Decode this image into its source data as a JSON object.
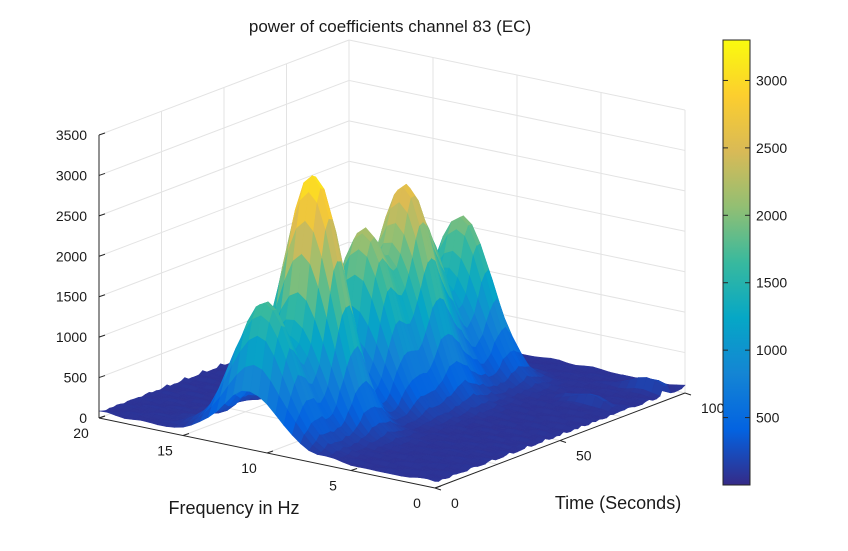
{
  "chart_data": {
    "type": "surface",
    "title": "power of coefficients channel 83 (EC)",
    "xlabel": "Frequency in Hz",
    "ylabel": "Time (Seconds)",
    "zlabel": "",
    "xlim": [
      0,
      20
    ],
    "ylim": [
      0,
      100
    ],
    "zlim": [
      0,
      3500
    ],
    "x_ticks": [
      "0",
      "5",
      "10",
      "15",
      "20"
    ],
    "y_ticks": [
      "0",
      "50",
      "100"
    ],
    "z_ticks": [
      "0",
      "500",
      "1000",
      "1500",
      "2000",
      "2500",
      "3000",
      "3500"
    ],
    "colormap": "parula",
    "colorbar": {
      "ticks": [
        "500",
        "1000",
        "1500",
        "2000",
        "2500",
        "3000"
      ],
      "range": [
        0,
        3300
      ],
      "colors": [
        "#352a87",
        "#0363e1",
        "#1485d4",
        "#06a7c6",
        "#38b99e",
        "#92bf73",
        "#d9ba56",
        "#fcce2e",
        "#f9fb0e"
      ]
    },
    "grid": true,
    "peaks": [
      {
        "frequency": 10.5,
        "time": 22,
        "power": 3100
      },
      {
        "frequency": 11,
        "time": 6,
        "power": 1650
      },
      {
        "frequency": 10.5,
        "time": 42,
        "power": 2100
      },
      {
        "frequency": 10,
        "time": 55,
        "power": 2450
      },
      {
        "frequency": 10.5,
        "time": 65,
        "power": 1600
      },
      {
        "frequency": 10,
        "time": 78,
        "power": 1950
      }
    ]
  }
}
